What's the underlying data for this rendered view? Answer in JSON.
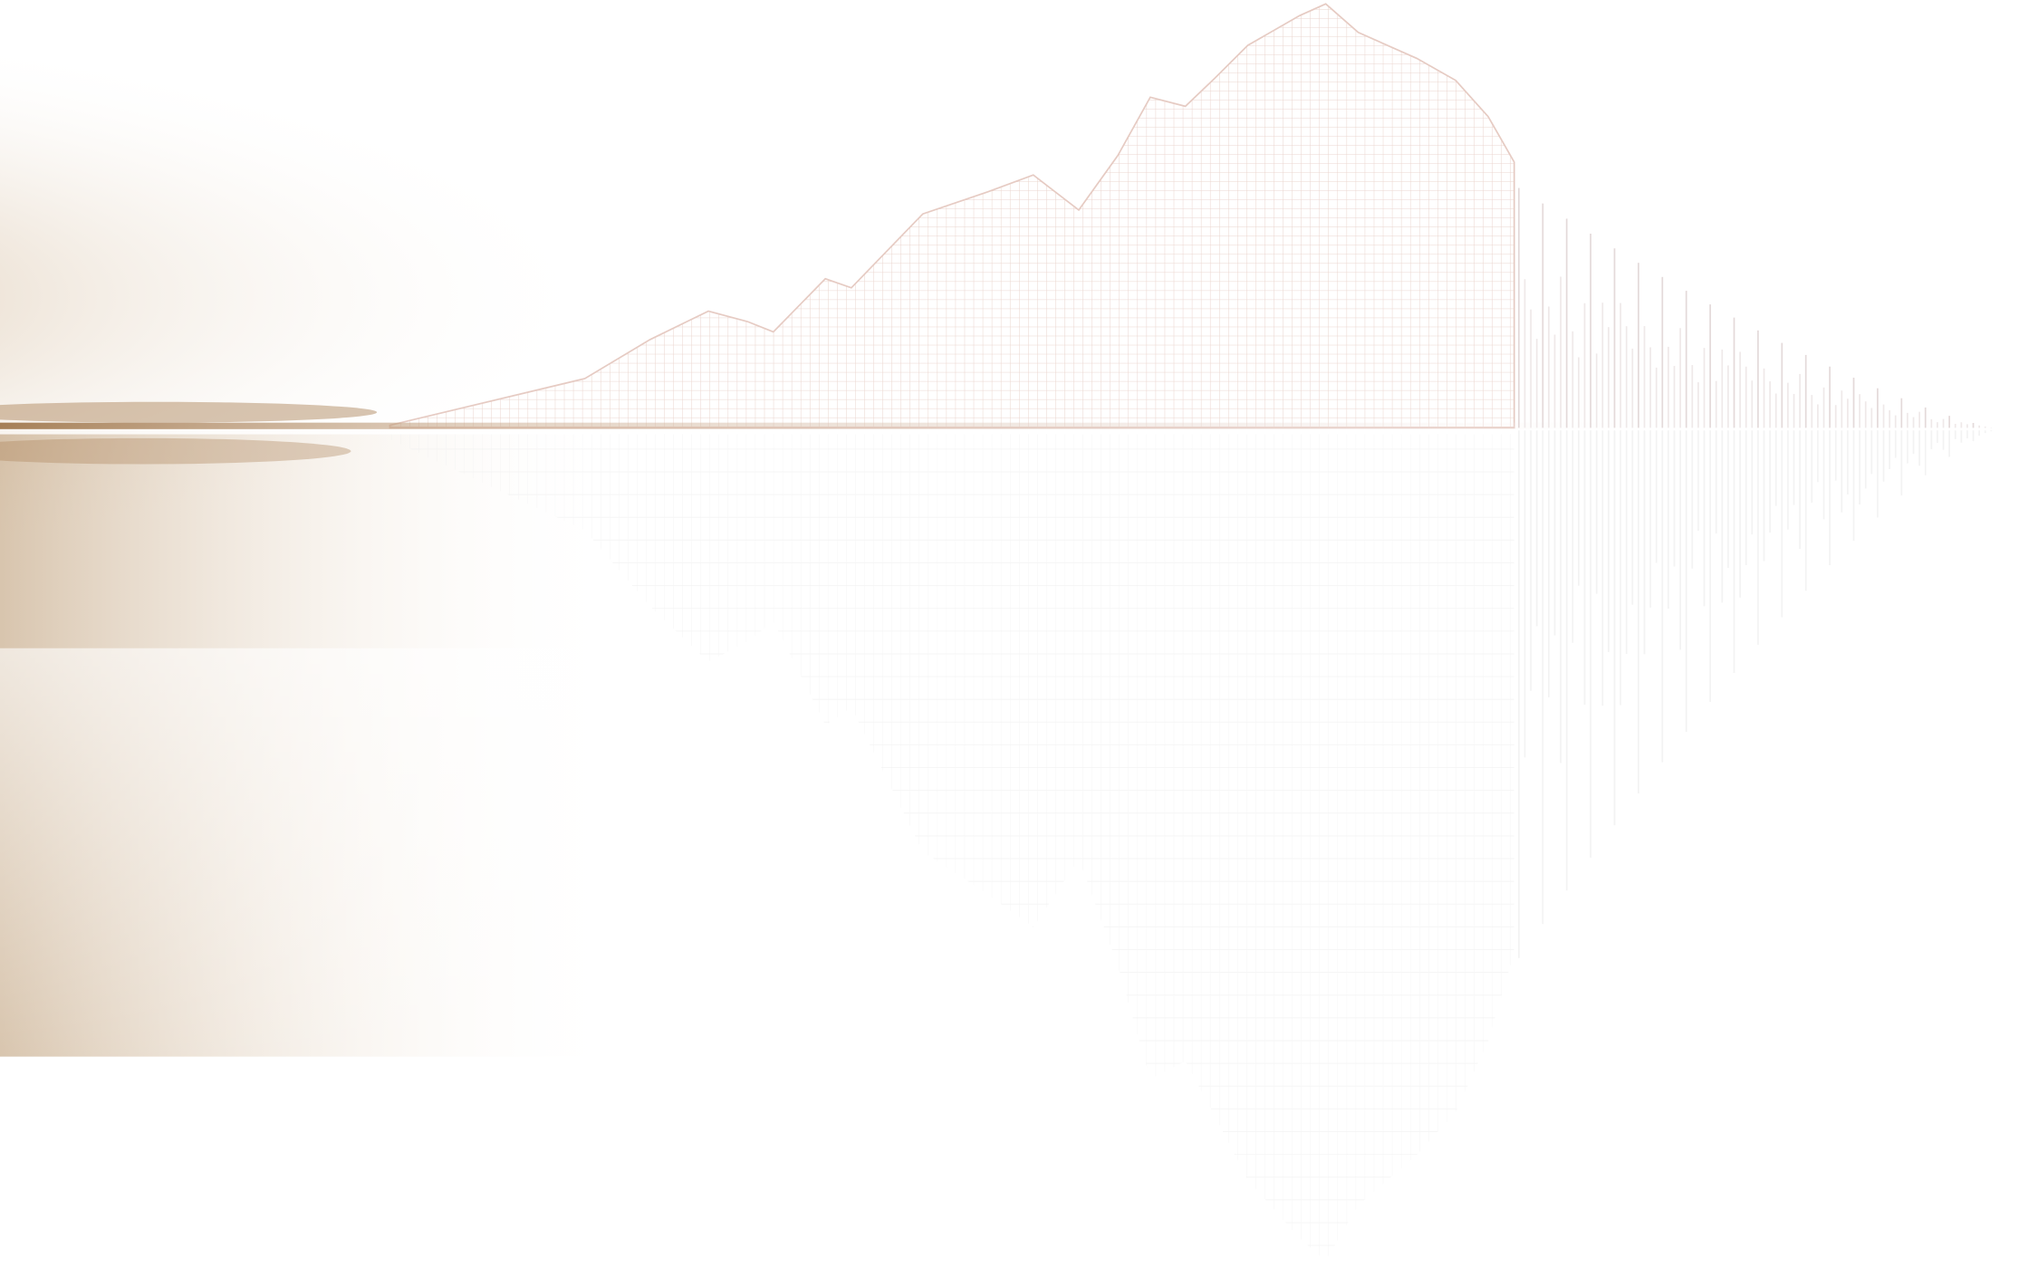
{
  "colors": {
    "background": "#ffffff",
    "glow": "#b08a5e",
    "wireframe": "#e8cfc8",
    "reflection": "#eeeeee",
    "bars": "#ece6e6"
  }
}
